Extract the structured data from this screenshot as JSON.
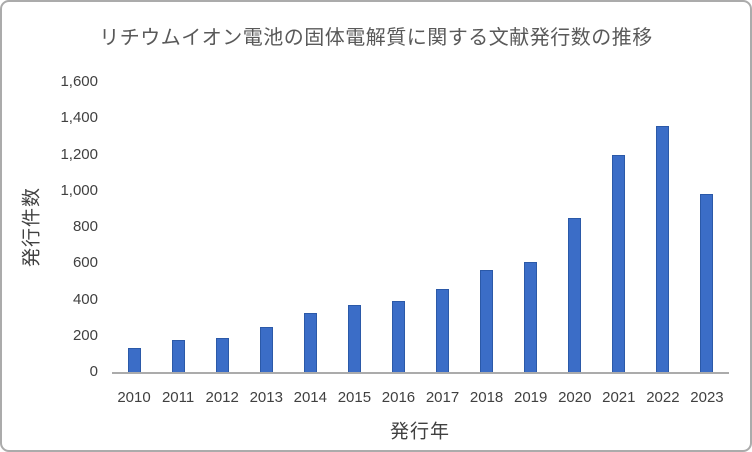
{
  "chart": {
    "title": "リチウムイオン電池の固体電解質に関する文献発行数の推移",
    "colors": {
      "background": "#FFFFFF",
      "frame_border": "#ABABAB",
      "axis_line": "#ABABAB",
      "bar_fill": "#3B6DC7",
      "bar_border": "#2B59A8",
      "title_text": "#595959",
      "axis_text": "#404040"
    }
  },
  "chart_data": {
    "type": "bar",
    "title": "リチウムイオン電池の固体電解質に関する文献発行数の推移",
    "xlabel": "発行年",
    "ylabel": "発行件数",
    "categories": [
      "2010",
      "2011",
      "2012",
      "2013",
      "2014",
      "2015",
      "2016",
      "2017",
      "2018",
      "2019",
      "2020",
      "2021",
      "2022",
      "2023"
    ],
    "values": [
      130,
      175,
      185,
      250,
      325,
      370,
      390,
      460,
      565,
      605,
      850,
      1200,
      1355,
      980
    ],
    "ylim": [
      0,
      1600
    ],
    "ytick_step": 200,
    "ytick_labels": [
      "0",
      "200",
      "400",
      "600",
      "800",
      "1,000",
      "1,200",
      "1,400",
      "1,600"
    ],
    "grid": false,
    "legend_position": "none"
  }
}
